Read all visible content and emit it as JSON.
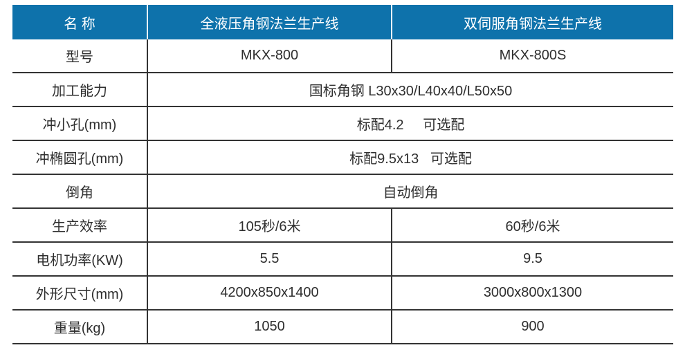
{
  "table": {
    "colors": {
      "header_bg": "#0e72ab",
      "header_text": "#ffffff",
      "body_text": "#2e2e2e",
      "grid_line": "#333333"
    },
    "header": {
      "name": "名 称",
      "line1": "全液压角钢法兰生产线",
      "line2": "双伺服角钢法兰生产线"
    },
    "rows": {
      "model": {
        "label": "型号",
        "col2": "MKX-800",
        "col3": "MKX-800S"
      },
      "capacity": {
        "label": "加工能力",
        "value": "国标角钢 L30x30/L40x40/L50x50"
      },
      "small_hole": {
        "label": "冲小孔(mm)",
        "value": "标配4.2     可选配"
      },
      "oval_hole": {
        "label": "冲椭圆孔(mm)",
        "value": "标配9.5x13   可选配"
      },
      "chamfer": {
        "label": "倒角",
        "value": "自动倒角"
      },
      "efficiency": {
        "label": "生产效率",
        "col2": "105秒/6米",
        "col3": "60秒/6米"
      },
      "motor_power": {
        "label": "电机功率(KW)",
        "col2": "5.5",
        "col3": "9.5"
      },
      "dimensions": {
        "label": "外形尺寸(mm)",
        "col2": "4200x850x1400",
        "col3": "3000x800x1300"
      },
      "weight": {
        "label": "重量(kg)",
        "col2": "1050",
        "col3": "900"
      }
    }
  }
}
